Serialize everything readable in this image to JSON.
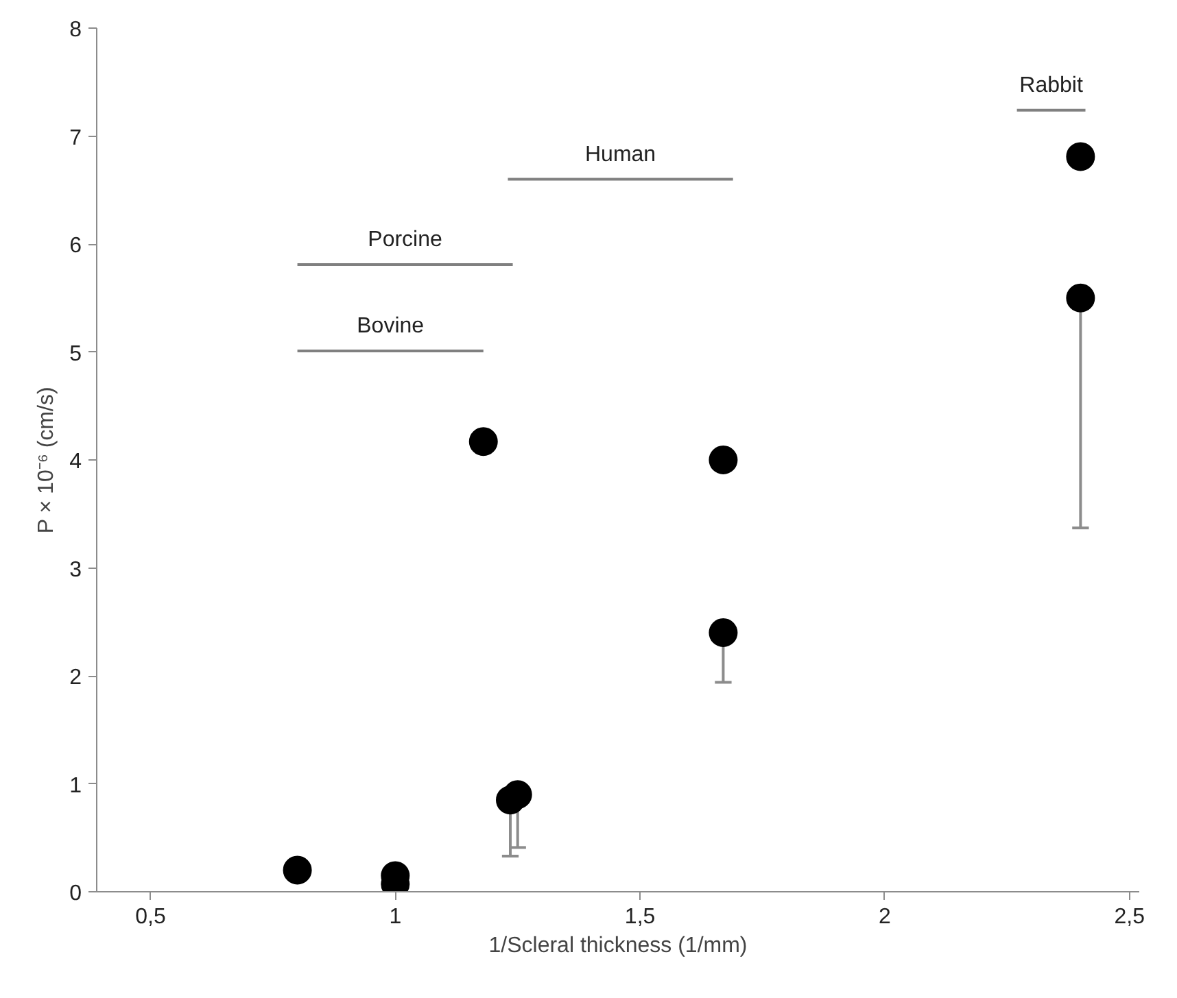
{
  "chart_data": {
    "type": "scatter",
    "xlabel": "1/Scleral thickness (1/mm)",
    "ylabel": "P × 10⁻⁶ (cm/s)",
    "xlim": [
      0.39,
      2.52
    ],
    "ylim": [
      0,
      8
    ],
    "xticks": [
      {
        "value": 0.5,
        "label": "0,5"
      },
      1,
      {
        "value": 1.5,
        "label": "1,5"
      },
      2,
      {
        "value": 2.5,
        "label": "2,5"
      }
    ],
    "yticks": [
      0,
      1,
      2,
      3,
      4,
      5,
      6,
      7,
      8
    ],
    "grid": false,
    "series": [
      {
        "color": "#000000",
        "marker": "circle",
        "x": [
          0.8,
          1.0,
          1.0,
          1.18,
          1.235,
          1.25,
          1.67,
          1.67,
          2.4,
          2.4
        ],
        "values": [
          0.2,
          0.15,
          0.07,
          4.17,
          0.85,
          0.9,
          4.0,
          2.4,
          6.81,
          5.5
        ],
        "errors": [
          null,
          null,
          null,
          null,
          [
            0.33,
            0.85
          ],
          [
            0.41,
            0.9
          ],
          null,
          [
            1.94,
            2.4
          ],
          null,
          [
            3.37,
            5.5
          ]
        ]
      },
      {
        "type": "line",
        "name": "Bovine",
        "color": "#808080",
        "marker": "none",
        "x": [
          0.8,
          1.18
        ],
        "values": [
          5.01,
          5.01
        ]
      },
      {
        "type": "line",
        "name": "Porcine",
        "color": "#808080",
        "marker": "none",
        "x": [
          0.8,
          1.24
        ],
        "values": [
          5.81,
          5.81
        ]
      },
      {
        "type": "line",
        "name": "Human",
        "color": "#808080",
        "marker": "none",
        "x": [
          1.23,
          1.69
        ],
        "values": [
          6.6,
          6.6
        ]
      },
      {
        "type": "line",
        "name": "Rabbit",
        "color": "#808080",
        "marker": "none",
        "x": [
          2.27,
          2.41
        ],
        "values": [
          7.24,
          7.24
        ]
      }
    ]
  }
}
